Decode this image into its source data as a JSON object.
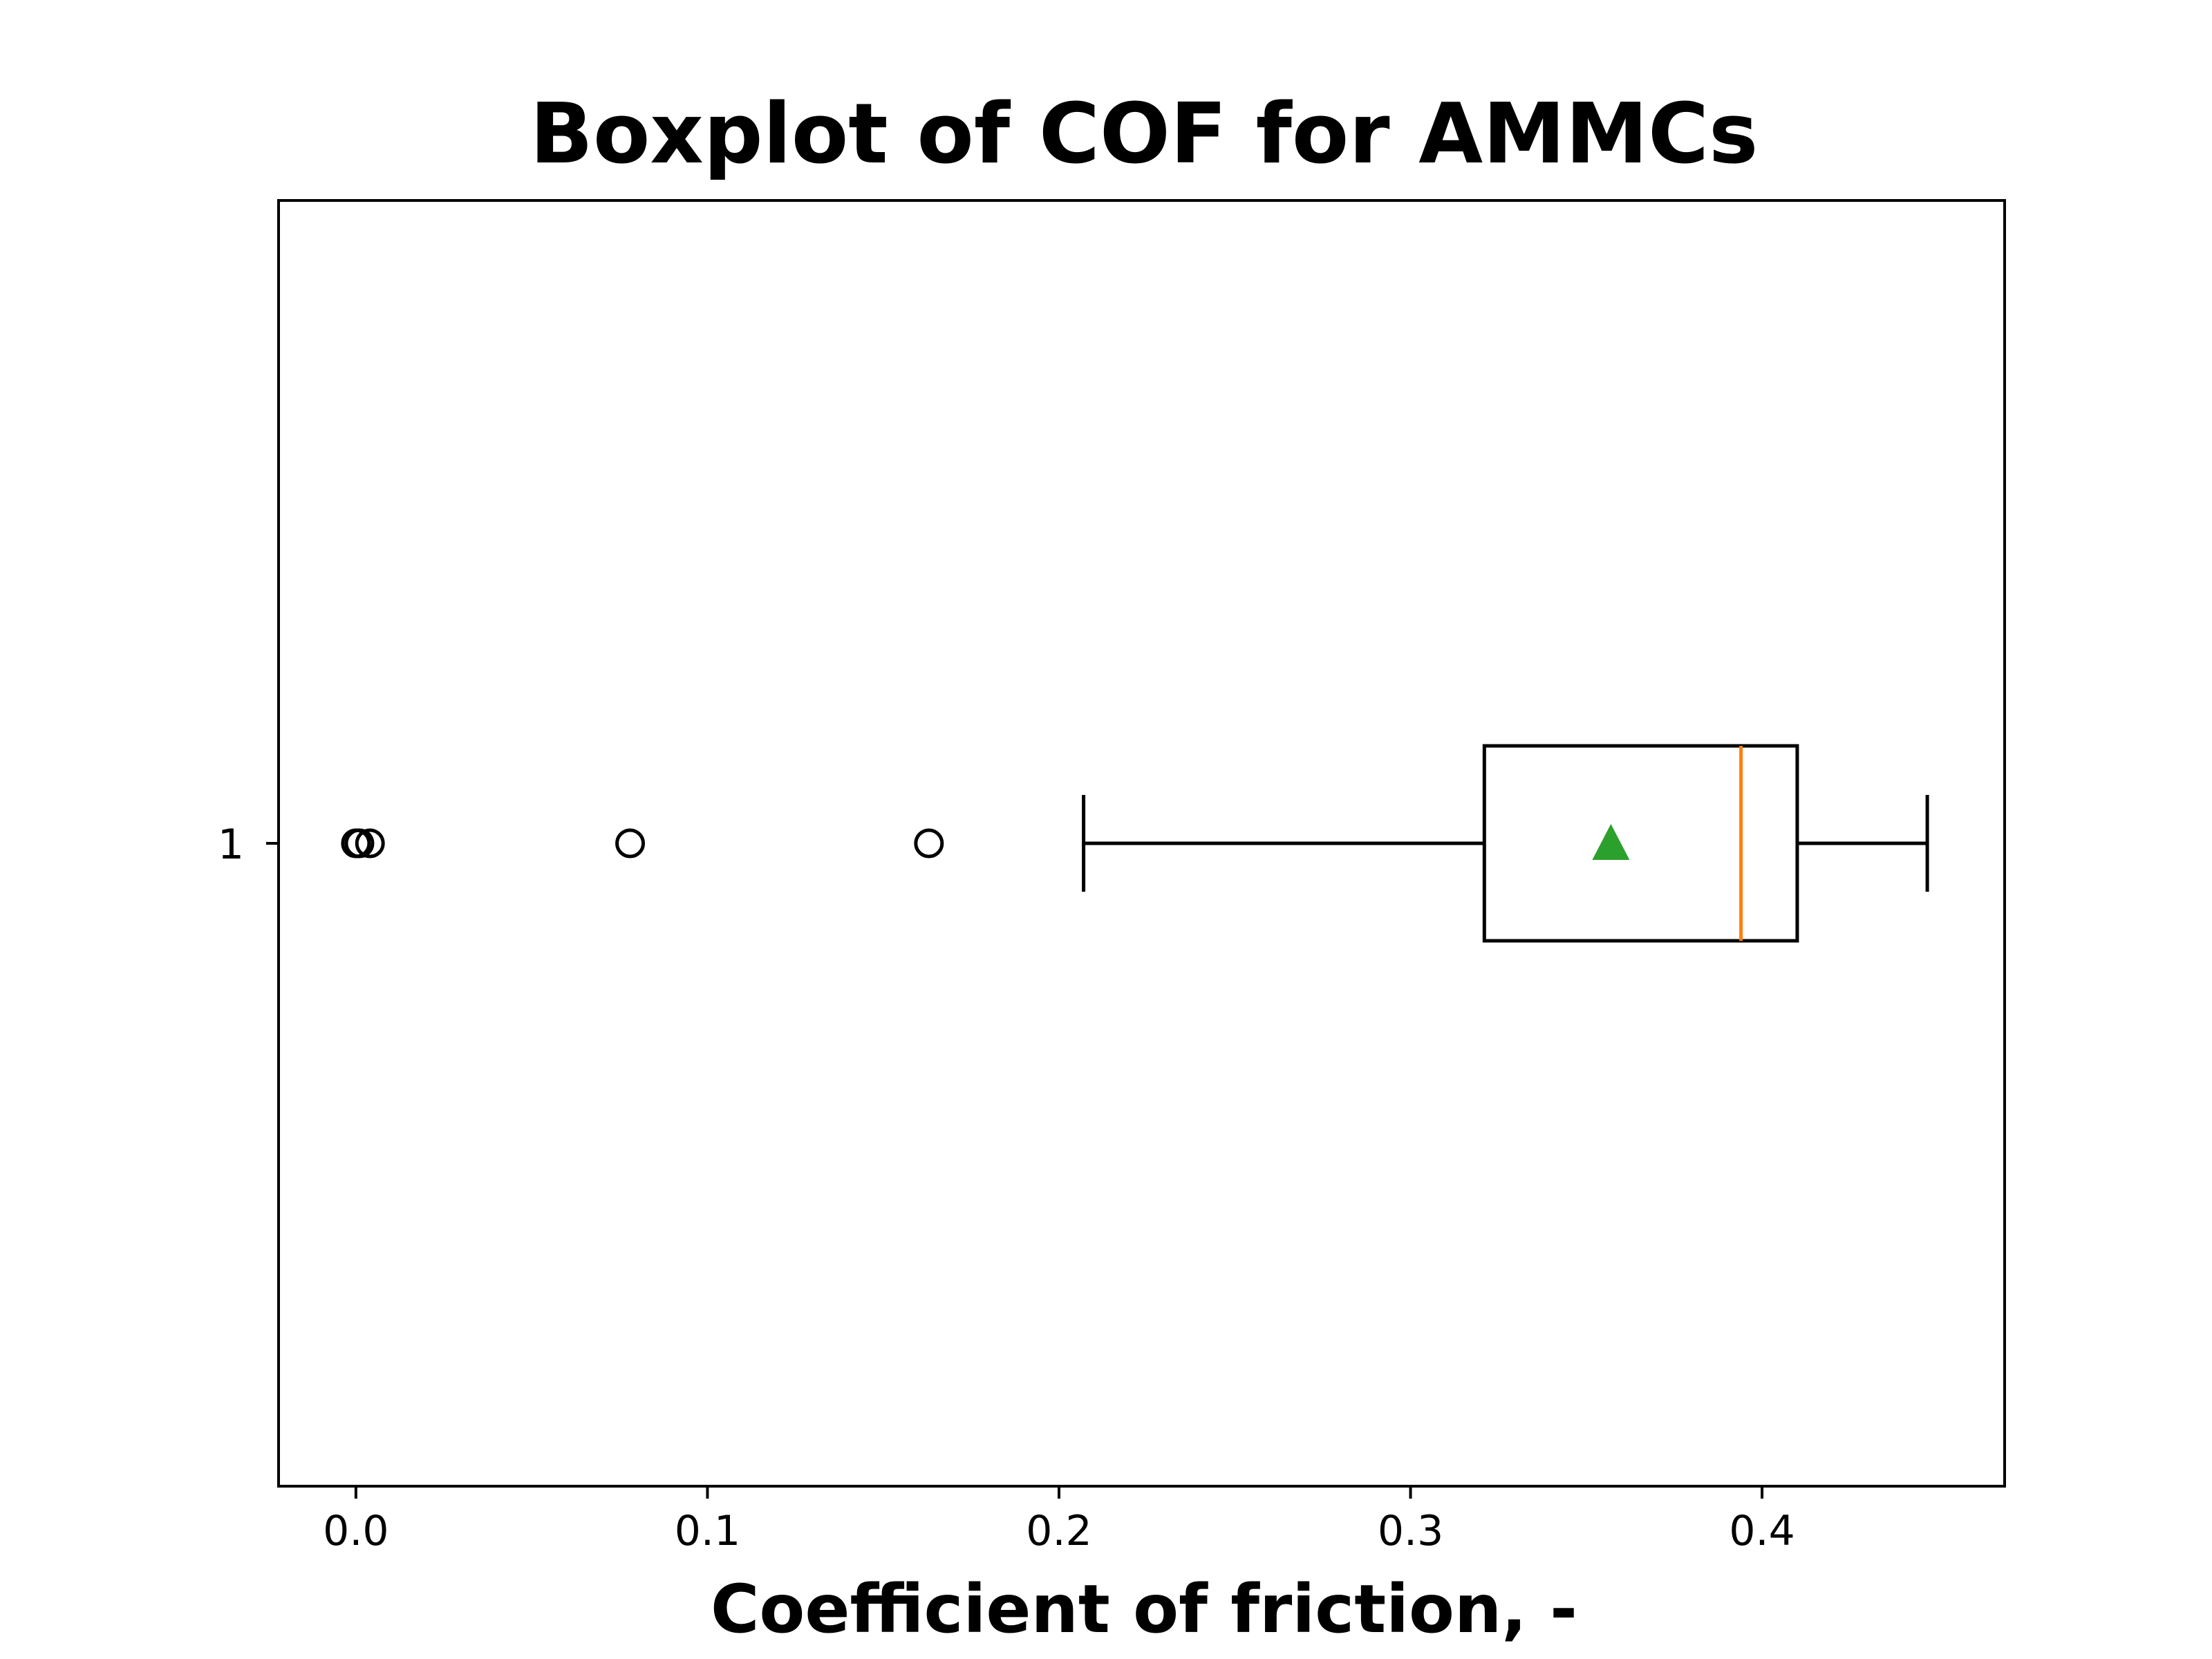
{
  "chart_data": {
    "type": "boxplot",
    "title": "Boxplot of COF for AMMCs",
    "xlabel": "Coefficient of friction, -",
    "ylabel": "",
    "orientation": "horizontal",
    "xlim": [
      -0.022,
      0.469
    ],
    "x_ticks": [
      0.0,
      0.1,
      0.2,
      0.3,
      0.4
    ],
    "x_tick_labels": [
      "0.0",
      "0.1",
      "0.2",
      "0.3",
      "0.4"
    ],
    "y_tick_labels": [
      "1"
    ],
    "grid": false,
    "series": [
      {
        "whisker_low": 0.207,
        "q1": 0.321,
        "median": 0.394,
        "q3": 0.41,
        "whisker_high": 0.447,
        "mean": 0.357,
        "outliers": [
          0.0,
          0.001,
          0.004,
          0.078,
          0.163
        ]
      }
    ],
    "colors": {
      "box": "#000000",
      "median": "#ff7f0e",
      "mean": "#2ca02c",
      "outlier": "#000000"
    }
  }
}
